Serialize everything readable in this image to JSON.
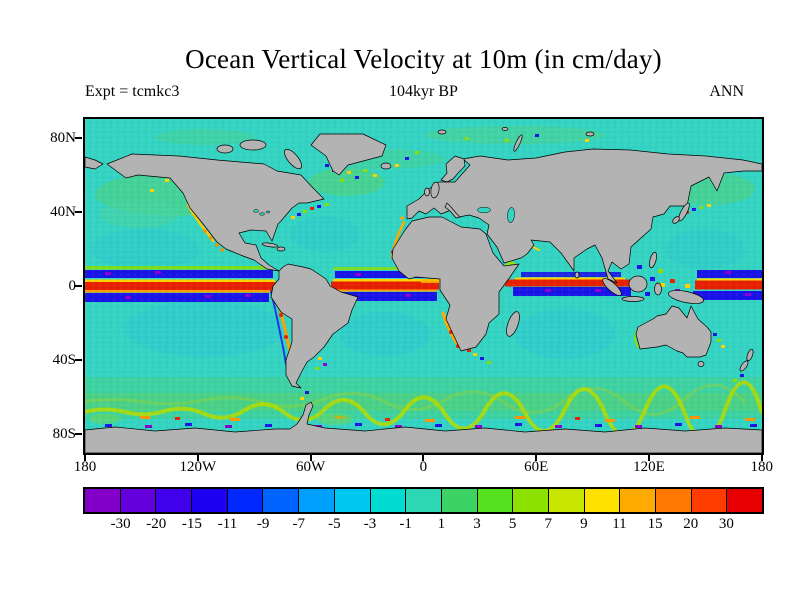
{
  "title": "Ocean Vertical Velocity at 10m (in cm/day)",
  "header": {
    "experiment_label": "Expt = tcmkc3",
    "time_label": "104kyr BP",
    "season_label": "ANN"
  },
  "map": {
    "y_ticks": [
      "80N",
      "40N",
      "0",
      "40S",
      "80S"
    ],
    "x_ticks": [
      "180",
      "120W",
      "60W",
      "0",
      "60E",
      "120E",
      "180"
    ],
    "land_color": "#b3b3b3",
    "ocean_base_color": "#35d3c2"
  },
  "colorbar": {
    "tick_labels": [
      "-30",
      "-20",
      "-15",
      "-11",
      "-9",
      "-7",
      "-5",
      "-3",
      "-1",
      "1",
      "3",
      "5",
      "7",
      "9",
      "11",
      "15",
      "20",
      "30"
    ],
    "colors": [
      "#8200c8",
      "#6400dc",
      "#4100eb",
      "#1e00f0",
      "#0028ff",
      "#0064ff",
      "#00a0ff",
      "#00c8f0",
      "#00dcd2",
      "#2ed7b4",
      "#3cd264",
      "#55e11e",
      "#8ce100",
      "#c8e600",
      "#ffe100",
      "#ffaa00",
      "#ff7800",
      "#ff3c00",
      "#e60000"
    ]
  },
  "chart_data": {
    "type": "heatmap",
    "title": "Ocean Vertical Velocity at 10m (in cm/day)",
    "variable": "ocean vertical velocity at 10 m depth",
    "units": "cm/day",
    "experiment": "tcmkc3",
    "time": "104kyr BP",
    "average": "ANN",
    "x": {
      "label": "longitude",
      "range_deg": [
        -180,
        180
      ],
      "tick_labels": [
        "180",
        "120W",
        "60W",
        "0",
        "60E",
        "120E",
        "180"
      ]
    },
    "y": {
      "label": "latitude",
      "range_deg": [
        -90,
        90
      ],
      "tick_labels": [
        "80N",
        "40N",
        "0",
        "40S",
        "80S"
      ]
    },
    "color_levels": [
      -30,
      -20,
      -15,
      -11,
      -9,
      -7,
      -5,
      -3,
      -1,
      1,
      3,
      5,
      7,
      9,
      11,
      15,
      20,
      30
    ],
    "colors": [
      "#8200c8",
      "#6400dc",
      "#4100eb",
      "#1e00f0",
      "#0028ff",
      "#0064ff",
      "#00a0ff",
      "#00c8f0",
      "#00dcd2",
      "#2ed7b4",
      "#3cd264",
      "#55e11e",
      "#8ce100",
      "#c8e600",
      "#ffe100",
      "#ffaa00",
      "#ff7800",
      "#ff3c00",
      "#e60000"
    ],
    "land_color": "#b3b3b3",
    "features": [
      "Strong equatorial upwelling band (red, >30 cm/day) across the Pacific, Atlantic and Indian Oceans",
      "Strong downwelling bands (dark blue/purple, < -11 cm/day) immediately north and south of the equatorial upwelling band",
      "Coastal upwelling (yellow/orange/red) along Peru-Chile, California, northwest Africa, Namibia and Somalia coasts",
      "Ring of upwelling (green/yellow with orange patches) in the Southern Ocean near 55-65S",
      "Downwelling spots (dark blue/purple) along the Antarctic coastline",
      "Near-zero vertical velocity (teal/cyan, -1 to 1 cm/day) over most ocean interiors",
      "Mixed strong up/downwelling speckle around Indonesia and the western boundary currents"
    ]
  }
}
